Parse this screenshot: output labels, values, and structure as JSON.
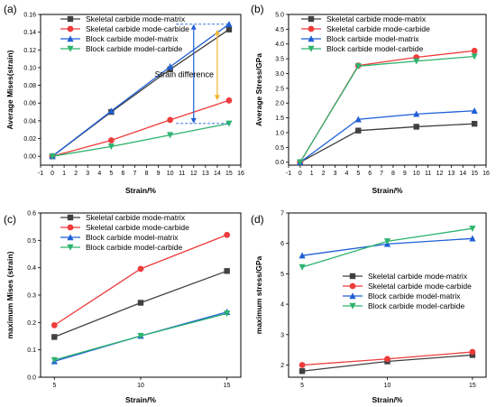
{
  "chart_data": [
    {
      "type": "line",
      "panel_label": "(a)",
      "xlabel": "Strain/%",
      "ylabel": "Average Mises(strain)",
      "xlim": [
        -1,
        16
      ],
      "ylim": [
        -0.01,
        0.16
      ],
      "xticks": [
        -1,
        0,
        1,
        2,
        3,
        4,
        5,
        6,
        7,
        8,
        9,
        10,
        11,
        12,
        13,
        14,
        15,
        16
      ],
      "yticks": [
        "0.00",
        "0.02",
        "0.04",
        "0.06",
        "0.08",
        "0.10",
        "0.12",
        "0.14",
        "0.16"
      ],
      "legend": "top-left",
      "annotation": "Strain difference",
      "series": [
        {
          "name": "Skeletal carbide mode-matrix",
          "color": "#404040",
          "marker": "square",
          "x": [
            0,
            5,
            10,
            15
          ],
          "values": [
            0.0,
            0.05,
            0.098,
            0.143
          ]
        },
        {
          "name": "Skeletal carbide mode-carbide",
          "color": "#ee3b3b",
          "marker": "circle",
          "x": [
            0,
            5,
            10,
            15
          ],
          "values": [
            0.0,
            0.018,
            0.041,
            0.063
          ]
        },
        {
          "name": "Block carbide model-matrix",
          "color": "#1f5fd6",
          "marker": "triangle-up",
          "x": [
            0,
            5,
            10,
            15
          ],
          "values": [
            0.0,
            0.051,
            0.101,
            0.149
          ]
        },
        {
          "name": "Block carbide model-carbide",
          "color": "#2db36e",
          "marker": "triangle-down",
          "x": [
            0,
            5,
            10,
            15
          ],
          "values": [
            0.0,
            0.011,
            0.024,
            0.037
          ]
        }
      ]
    },
    {
      "type": "line",
      "panel_label": "(b)",
      "xlabel": "Strain/%",
      "ylabel": "Average Stress/GPa",
      "xlim": [
        -1,
        16
      ],
      "ylim": [
        -0.1,
        5.0
      ],
      "xticks": [
        -1,
        0,
        1,
        2,
        3,
        4,
        5,
        6,
        7,
        8,
        9,
        10,
        11,
        12,
        13,
        14,
        15,
        16
      ],
      "yticks": [
        "0.0",
        "0.5",
        "1.0",
        "1.5",
        "2.0",
        "2.5",
        "3.0",
        "3.5",
        "4.0",
        "4.5",
        "5.0"
      ],
      "legend": "top-left",
      "series": [
        {
          "name": "Skeletal carbide mode-matrix",
          "color": "#404040",
          "marker": "square",
          "x": [
            0,
            5,
            10,
            15
          ],
          "values": [
            0.0,
            1.07,
            1.2,
            1.3
          ]
        },
        {
          "name": "Skeletal carbide mode-carbide",
          "color": "#ee3b3b",
          "marker": "circle",
          "x": [
            0,
            5,
            10,
            15
          ],
          "values": [
            0.0,
            3.27,
            3.55,
            3.77
          ]
        },
        {
          "name": "Block carbide model-matrix",
          "color": "#1f5fd6",
          "marker": "triangle-up",
          "x": [
            0,
            5,
            10,
            15
          ],
          "values": [
            0.0,
            1.45,
            1.63,
            1.74
          ]
        },
        {
          "name": "Block carbide model-carbide",
          "color": "#2db36e",
          "marker": "triangle-down",
          "x": [
            0,
            5,
            10,
            15
          ],
          "values": [
            0.0,
            3.25,
            3.42,
            3.58
          ]
        }
      ]
    },
    {
      "type": "line",
      "panel_label": "(c)",
      "xlabel": "Strain/%",
      "ylabel": "maximum Mises (strain)",
      "xlim": [
        4.2,
        15.8
      ],
      "ylim": [
        0.0,
        0.6
      ],
      "xticks": [
        5,
        10,
        15
      ],
      "yticks": [
        "0.0",
        "0.1",
        "0.2",
        "0.3",
        "0.4",
        "0.5",
        "0.6"
      ],
      "legend": "top-left",
      "series": [
        {
          "name": "Skeletal carbide mode-matrix",
          "color": "#404040",
          "marker": "square",
          "x": [
            5,
            10,
            15
          ],
          "values": [
            0.147,
            0.272,
            0.388
          ]
        },
        {
          "name": "Skeletal carbide mode-carbide",
          "color": "#ee3b3b",
          "marker": "circle",
          "x": [
            5,
            10,
            15
          ],
          "values": [
            0.19,
            0.396,
            0.52
          ]
        },
        {
          "name": "Block carbide model-matrix",
          "color": "#1f5fd6",
          "marker": "triangle-up",
          "x": [
            5,
            10,
            15
          ],
          "values": [
            0.058,
            0.151,
            0.238
          ]
        },
        {
          "name": "Block carbide model-carbide",
          "color": "#2db36e",
          "marker": "triangle-down",
          "x": [
            5,
            10,
            15
          ],
          "values": [
            0.063,
            0.151,
            0.233
          ]
        }
      ]
    },
    {
      "type": "line",
      "panel_label": "(d)",
      "xlabel": "Strain/%",
      "ylabel": "maximum stress/GPa",
      "xlim": [
        4.2,
        15.8
      ],
      "ylim": [
        1.6,
        7.0
      ],
      "xticks": [
        5,
        10,
        15
      ],
      "yticks": [
        "2",
        "3",
        "4",
        "5",
        "6",
        "7"
      ],
      "legend": "center-right",
      "series": [
        {
          "name": "Skeletal carbide mode-matrix",
          "color": "#404040",
          "marker": "square",
          "x": [
            5,
            10,
            15
          ],
          "values": [
            1.8,
            2.12,
            2.33
          ]
        },
        {
          "name": "Skeletal carbide mode-carbide",
          "color": "#ee3b3b",
          "marker": "circle",
          "x": [
            5,
            10,
            15
          ],
          "values": [
            2.0,
            2.2,
            2.43
          ]
        },
        {
          "name": "Block carbide model-matrix",
          "color": "#1f5fd6",
          "marker": "triangle-up",
          "x": [
            5,
            10,
            15
          ],
          "values": [
            5.6,
            5.98,
            6.16
          ]
        },
        {
          "name": "Block carbide model-carbide",
          "color": "#2db36e",
          "marker": "triangle-down",
          "x": [
            5,
            10,
            15
          ],
          "values": [
            5.22,
            6.07,
            6.49
          ]
        }
      ]
    }
  ]
}
